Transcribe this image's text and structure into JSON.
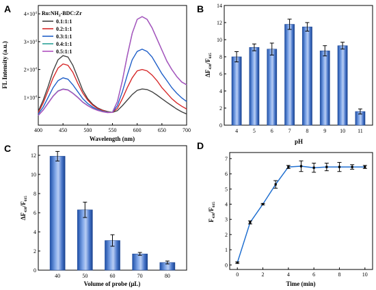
{
  "panels": [
    {
      "letter": "A",
      "chart_data": {
        "type": "line",
        "xlabel": "Wavelength (nm)",
        "ylabel": "FL Intensity (a.u.)",
        "xlim": [
          400,
          700
        ],
        "ylim": [
          0,
          43000
        ],
        "xticks": [
          "400",
          "450",
          "500",
          "550",
          "600",
          "650",
          "700"
        ],
        "yticks": [
          {
            "value": 10000,
            "mantissa": "1×10",
            "exp": "4"
          },
          {
            "value": 20000,
            "mantissa": "2×10",
            "exp": "4"
          },
          {
            "value": 30000,
            "mantissa": "3×10",
            "exp": "4"
          },
          {
            "value": 40000,
            "mantissa": "4×10",
            "exp": "4"
          }
        ],
        "legend": {
          "position": "top-left",
          "title_prefix": "Ru:NH",
          "title_sub": "2",
          "title_suffix": "-BDC:Zr"
        },
        "series": [
          {
            "name": "0.1:1:1",
            "color": "#404040",
            "x": [
              400,
              410,
              420,
              430,
              440,
              450,
              460,
              470,
              480,
              490,
              500,
              510,
              520,
              530,
              540,
              550,
              560,
              570,
              580,
              590,
              600,
              610,
              620,
              630,
              640,
              650,
              660,
              670,
              680,
              690,
              700
            ],
            "y": [
              5000,
              9000,
              14000,
              19500,
              23500,
              25000,
              24500,
              21500,
              17000,
              12500,
              9500,
              7500,
              6200,
              5400,
              4900,
              4600,
              5200,
              7000,
              9000,
              11000,
              12500,
              13000,
              12800,
              12000,
              10800,
              9500,
              8200,
              7000,
              5800,
              4800,
              4000
            ]
          },
          {
            "name": "0.2:1:1",
            "color": "#d62728",
            "x": [
              400,
              410,
              420,
              430,
              440,
              450,
              460,
              470,
              480,
              490,
              500,
              510,
              520,
              530,
              540,
              550,
              560,
              570,
              580,
              590,
              600,
              610,
              620,
              630,
              640,
              650,
              660,
              670,
              680,
              690,
              700
            ],
            "y": [
              4500,
              8000,
              12500,
              17000,
              20500,
              22000,
              21500,
              19000,
              15000,
              11500,
              9000,
              7200,
              6000,
              5300,
              4800,
              4600,
              6000,
              9500,
              13500,
              17000,
              19500,
              20000,
              19500,
              18000,
              16000,
              13500,
              11500,
              9500,
              8000,
              6800,
              5800
            ]
          },
          {
            "name": "0.3:1:1",
            "color": "#1f5fc8",
            "x": [
              400,
              410,
              420,
              430,
              440,
              450,
              460,
              470,
              480,
              490,
              500,
              510,
              520,
              530,
              540,
              550,
              560,
              570,
              580,
              590,
              600,
              610,
              620,
              630,
              640,
              650,
              660,
              670,
              680,
              690,
              700
            ],
            "y": [
              4000,
              6500,
              10000,
              13500,
              16000,
              17000,
              16500,
              14500,
              12000,
              9500,
              7800,
              6500,
              5600,
              5000,
              4700,
              4600,
              7000,
              12000,
              18000,
              23500,
              26500,
              27300,
              26500,
              24500,
              21500,
              18500,
              16000,
              13500,
              11500,
              9800,
              8500
            ]
          },
          {
            "name": "0.4:1:1",
            "color": "#2aa198",
            "x": [
              400,
              410,
              420,
              430,
              440,
              450,
              460,
              470,
              480,
              490,
              500,
              510,
              520,
              530,
              540,
              550,
              560,
              570,
              580,
              590,
              600,
              610,
              620,
              630,
              640,
              650,
              660,
              670,
              680,
              690,
              700
            ],
            "y": [
              3500,
              5500,
              8000,
              10500,
              12300,
              13000,
              12700,
              11500,
              10000,
              8300,
              7100,
              6100,
              5400,
              4900,
              4600,
              4700,
              8500,
              16000,
              25000,
              33000,
              38000,
              39000,
              38000,
              35000,
              31000,
              27000,
              23000,
              20000,
              17500,
              15500,
              14500
            ]
          },
          {
            "name": "0.5:1:1",
            "color": "#b04fc0",
            "x": [
              400,
              410,
              420,
              430,
              440,
              450,
              460,
              470,
              480,
              490,
              500,
              510,
              520,
              530,
              540,
              550,
              560,
              570,
              580,
              590,
              600,
              610,
              620,
              630,
              640,
              650,
              660,
              670,
              680,
              690,
              700
            ],
            "y": [
              3500,
              5400,
              7900,
              10400,
              12200,
              12900,
              12600,
              11400,
              9900,
              8200,
              7000,
              6000,
              5300,
              4800,
              4500,
              4600,
              8400,
              16000,
              25000,
              33000,
              38000,
              39000,
              38000,
              35000,
              31000,
              27000,
              23000,
              20000,
              17500,
              15500,
              14500
            ]
          }
        ]
      }
    },
    {
      "letter": "B",
      "chart_data": {
        "type": "bar",
        "xlabel": "pH",
        "ylabel_main": "ΔF",
        "ylabel_sub1": "430",
        "ylabel_mid": "/F",
        "ylabel_sub2": "615",
        "ylim": [
          0,
          14
        ],
        "yticks": [
          "0",
          "2",
          "4",
          "6",
          "8",
          "10",
          "12",
          "14"
        ],
        "categories": [
          "4",
          "5",
          "6",
          "7",
          "8",
          "9",
          "10",
          "11"
        ],
        "values": [
          8.0,
          9.1,
          8.9,
          11.8,
          11.5,
          8.7,
          9.3,
          1.6
        ],
        "errors": [
          0.6,
          0.4,
          0.7,
          0.6,
          0.5,
          0.6,
          0.4,
          0.3
        ]
      }
    },
    {
      "letter": "C",
      "chart_data": {
        "type": "bar",
        "xlabel": "Volume of probe (μL)",
        "ylabel_main": "ΔF",
        "ylabel_sub1": "430",
        "ylabel_mid": "/F",
        "ylabel_sub2": "615",
        "ylim": [
          0,
          13
        ],
        "yticks": [
          "0",
          "2",
          "4",
          "6",
          "8",
          "10",
          "12"
        ],
        "categories": [
          "40",
          "50",
          "60",
          "70",
          "80"
        ],
        "values": [
          11.9,
          6.3,
          3.1,
          1.7,
          0.8
        ],
        "errors": [
          0.5,
          0.8,
          0.6,
          0.15,
          0.15
        ]
      }
    },
    {
      "letter": "D",
      "chart_data": {
        "type": "line",
        "xlabel": "Time (min)",
        "ylabel_main": "F",
        "ylabel_sub1": "430",
        "ylabel_mid": "/F",
        "ylabel_sub2": "615",
        "xlim": [
          -0.6,
          10.6
        ],
        "ylim": [
          -0.3,
          7.4
        ],
        "xticks": [
          "0",
          "2",
          "4",
          "6",
          "8",
          "10"
        ],
        "yticks": [
          "0",
          "1",
          "2",
          "3",
          "4",
          "5",
          "6",
          "7"
        ],
        "color": "#1f6fd0",
        "x": [
          0,
          1,
          2,
          3,
          4,
          5,
          6,
          7,
          8,
          9,
          10
        ],
        "y": [
          0.15,
          2.8,
          4.0,
          5.3,
          6.45,
          6.5,
          6.4,
          6.45,
          6.45,
          6.45,
          6.45
        ],
        "errors": [
          0.05,
          0.1,
          0.05,
          0.25,
          0.1,
          0.35,
          0.3,
          0.25,
          0.3,
          0.15,
          0.1
        ]
      }
    }
  ]
}
